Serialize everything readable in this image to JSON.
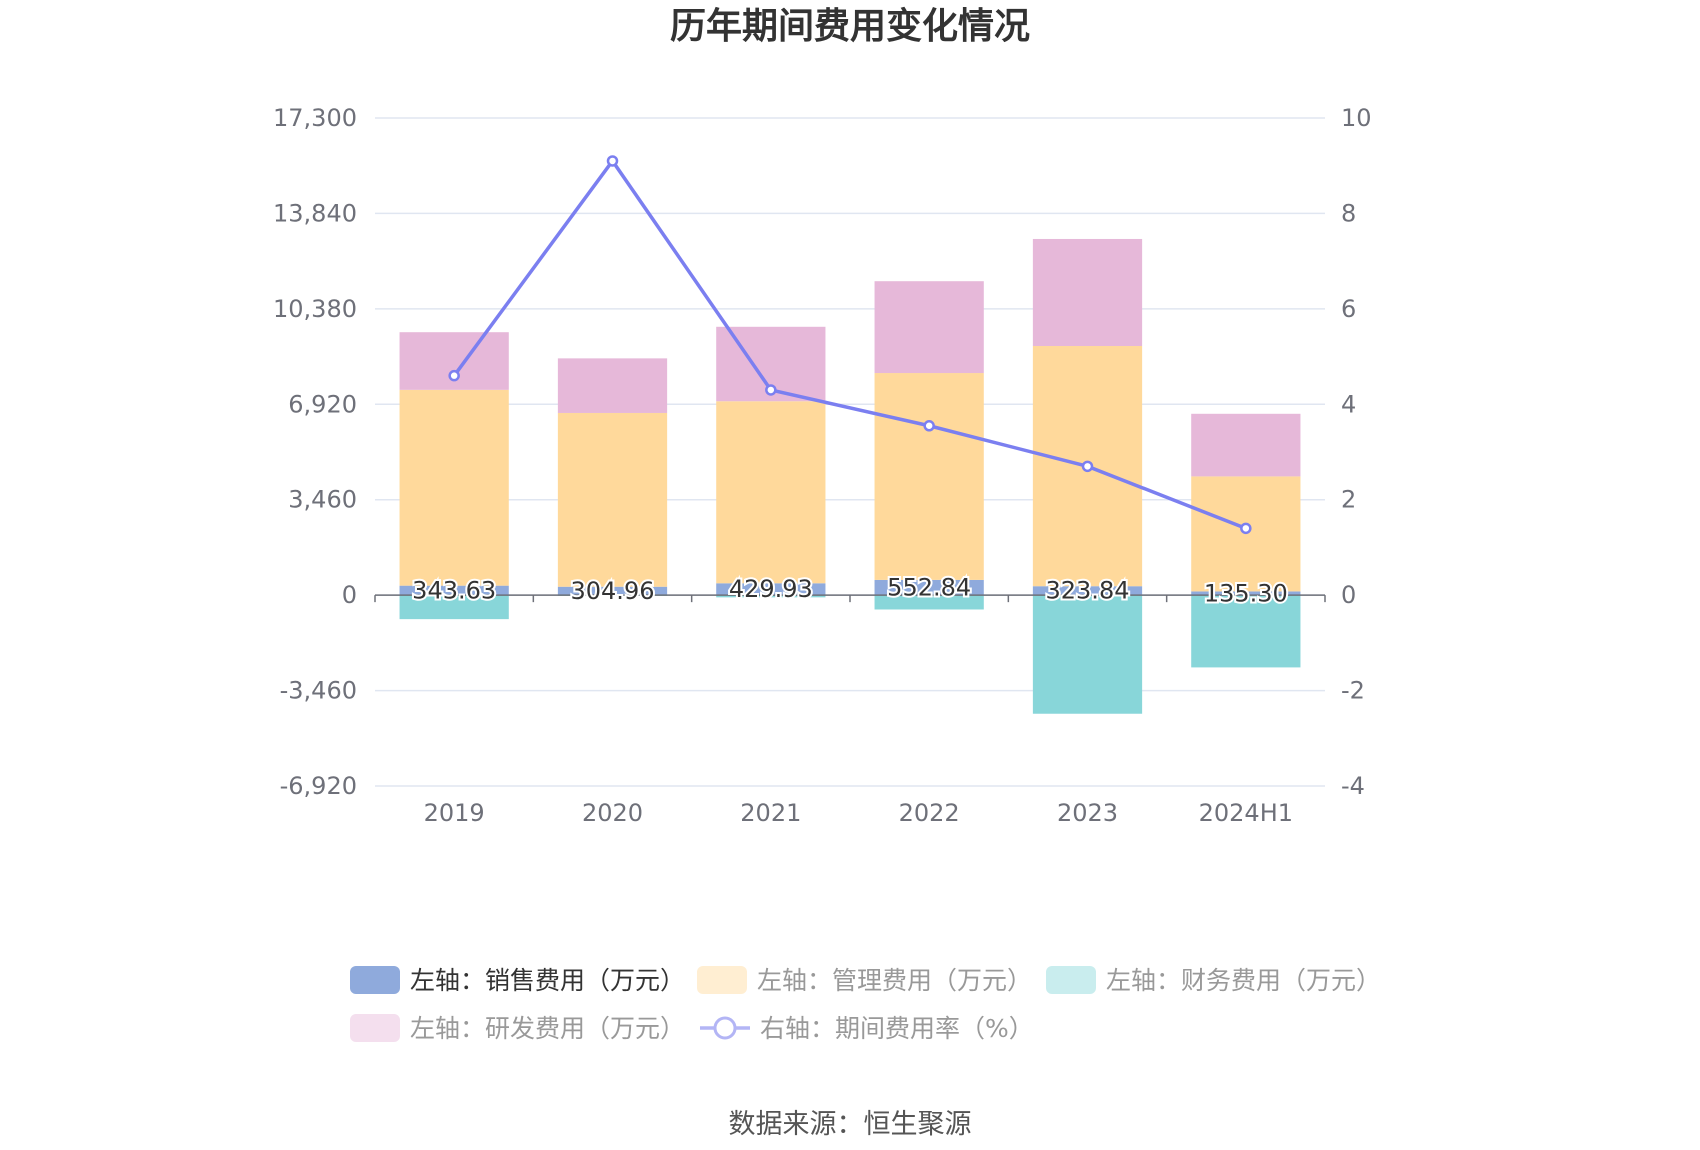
{
  "title": "历年期间费用变化情况",
  "source": "数据来源：恒生聚源",
  "chart_data": {
    "type": "bar",
    "categories": [
      "2019",
      "2020",
      "2021",
      "2022",
      "2023",
      "2024H1"
    ],
    "left_axis": {
      "ticks": [
        "17,300",
        "13,840",
        "10,380",
        "6,920",
        "3,460",
        "0",
        "-3,460",
        "-6,920"
      ],
      "ylim": [
        -6920,
        17300
      ]
    },
    "right_axis": {
      "ticks": [
        "10",
        "8",
        "6",
        "4",
        "2",
        "0",
        "-2",
        "-4"
      ],
      "ylim": [
        -4,
        10
      ]
    },
    "series": [
      {
        "name": "左轴：销售费用（万元）",
        "type": "bar",
        "stack": "pos",
        "axis": "left",
        "color": "#8faadc",
        "values": [
          343.63,
          304.96,
          429.93,
          552.84,
          323.84,
          135.3
        ],
        "labels": [
          "343.63",
          "304.96",
          "429.93",
          "552.84",
          "323.84",
          "135.30"
        ]
      },
      {
        "name": "左轴：管理费用（万元）",
        "type": "bar",
        "stack": "pos",
        "axis": "left",
        "color": "#ffd99b",
        "values": [
          7100,
          6300,
          6600,
          7500,
          8710,
          4170
        ]
      },
      {
        "name": "左轴：财务费用（万元）",
        "type": "bar",
        "stack": "neg",
        "axis": "left",
        "color": "#88d6d9",
        "values": [
          -870,
          -30,
          -80,
          -520,
          -4300,
          -2620
        ]
      },
      {
        "name": "左轴：研发费用（万元）",
        "type": "bar",
        "stack": "pos",
        "axis": "left",
        "color": "#e6b8d9",
        "values": [
          2090,
          1980,
          2700,
          3330,
          3880,
          2270
        ]
      },
      {
        "name": "右轴：期间费用率（%）",
        "type": "line",
        "axis": "right",
        "color": "#7b7ff0",
        "values": [
          4.6,
          9.1,
          4.3,
          3.55,
          2.7,
          1.4
        ]
      }
    ],
    "legend_position": "bottom",
    "grid": true
  }
}
